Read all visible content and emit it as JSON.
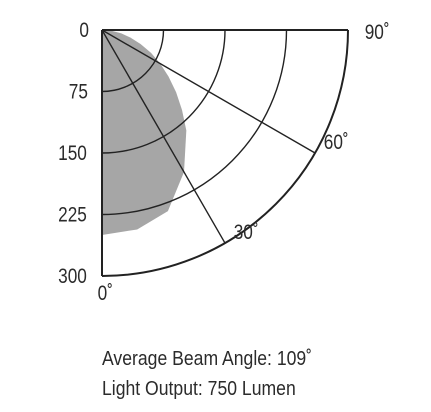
{
  "chart_data": {
    "type": "polar-beam-diagram",
    "radial_ticks": [
      "0",
      "75",
      "150",
      "225",
      "300"
    ],
    "radial_range": [
      0,
      300
    ],
    "angle_labels": [
      "0˚",
      "30˚",
      "60˚",
      "90˚"
    ],
    "angle_range": [
      0,
      90
    ],
    "grid": true,
    "beam_outline": [
      {
        "angle": 0,
        "value": 250
      },
      {
        "angle": 10,
        "value": 247
      },
      {
        "angle": 20,
        "value": 235
      },
      {
        "angle": 30,
        "value": 200
      },
      {
        "angle": 40,
        "value": 160
      },
      {
        "angle": 45,
        "value": 138
      },
      {
        "angle": 50,
        "value": 118
      },
      {
        "angle": 55,
        "value": 99
      },
      {
        "angle": 60,
        "value": 82
      },
      {
        "angle": 65,
        "value": 66
      },
      {
        "angle": 70,
        "value": 50
      },
      {
        "angle": 75,
        "value": 36
      },
      {
        "angle": 80,
        "value": 24
      },
      {
        "angle": 85,
        "value": 12
      },
      {
        "angle": 90,
        "value": 0
      }
    ],
    "beam_color": "#a6a6a6",
    "line_color": "#222222"
  },
  "caption": {
    "beam_angle": "Average Beam Angle: 109˚",
    "light_output": "Light Output: 750 Lumen"
  }
}
